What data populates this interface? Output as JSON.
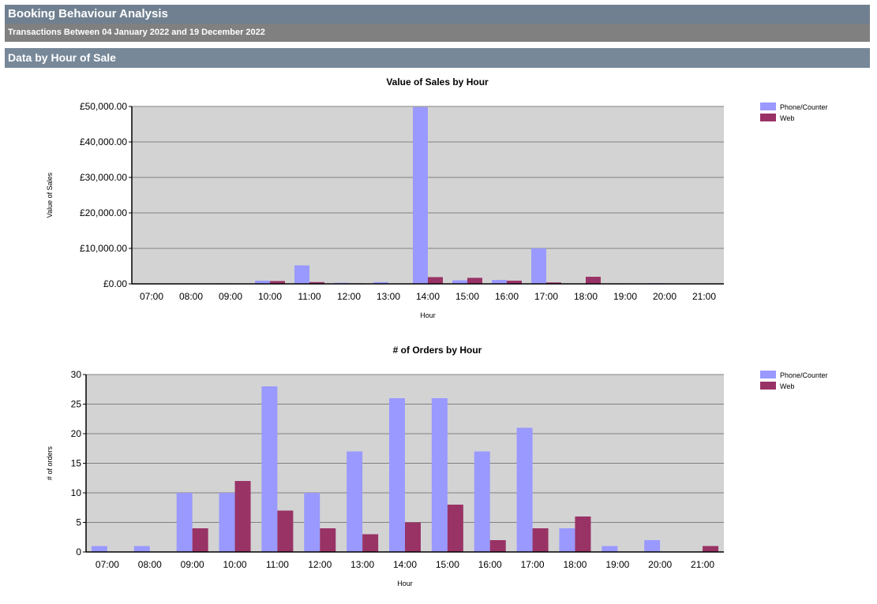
{
  "header": {
    "title": "Booking Behaviour Analysis",
    "subtitle": "Transactions Between 04 January 2022 and 19 December 2022",
    "section": "Data by Hour of Sale"
  },
  "colors": {
    "phone_counter": "#9999ff",
    "web": "#993366",
    "plot_background": "#d3d3d3",
    "header_title_bg": "#708090",
    "header_subtitle_bg": "#808080",
    "section_bg": "#778899"
  },
  "chart_data": [
    {
      "type": "bar",
      "title": "Value of Sales by Hour",
      "xlabel": "Hour",
      "ylabel": "Value of Sales",
      "categories": [
        "07:00",
        "08:00",
        "09:00",
        "10:00",
        "11:00",
        "12:00",
        "13:00",
        "14:00",
        "15:00",
        "16:00",
        "17:00",
        "18:00",
        "19:00",
        "20:00",
        "21:00"
      ],
      "ylim": [
        0,
        50000
      ],
      "yticks": [
        {
          "value": 0,
          "label": "£0.00"
        },
        {
          "value": 10000,
          "label": "£10,000.00"
        },
        {
          "value": 20000,
          "label": "£20,000.00"
        },
        {
          "value": 30000,
          "label": "£30,000.00"
        },
        {
          "value": 40000,
          "label": "£40,000.00"
        },
        {
          "value": 50000,
          "label": "£50,000.00"
        }
      ],
      "grid": true,
      "legend": "top-right",
      "series": [
        {
          "name": "Phone/Counter",
          "color": "#9999ff",
          "values": [
            30,
            40,
            150,
            900,
            5200,
            300,
            500,
            49800,
            1000,
            1100,
            10000,
            100,
            150,
            200,
            0
          ]
        },
        {
          "name": "Web",
          "color": "#993366",
          "values": [
            0,
            0,
            80,
            800,
            500,
            150,
            100,
            1900,
            1700,
            900,
            400,
            2000,
            50,
            30,
            120
          ]
        }
      ]
    },
    {
      "type": "bar",
      "title": "# of Orders by Hour",
      "xlabel": "Hour",
      "ylabel": "# of orders",
      "categories": [
        "07:00",
        "08:00",
        "09:00",
        "10:00",
        "11:00",
        "12:00",
        "13:00",
        "14:00",
        "15:00",
        "16:00",
        "17:00",
        "18:00",
        "19:00",
        "20:00",
        "21:00"
      ],
      "ylim": [
        0,
        30
      ],
      "yticks": [
        {
          "value": 0,
          "label": "0"
        },
        {
          "value": 5,
          "label": "5"
        },
        {
          "value": 10,
          "label": "10"
        },
        {
          "value": 15,
          "label": "15"
        },
        {
          "value": 20,
          "label": "20"
        },
        {
          "value": 25,
          "label": "25"
        },
        {
          "value": 30,
          "label": "30"
        }
      ],
      "grid": true,
      "legend": "top-right",
      "series": [
        {
          "name": "Phone/Counter",
          "color": "#9999ff",
          "values": [
            1,
            1,
            10,
            10,
            28,
            10,
            17,
            26,
            26,
            17,
            21,
            4,
            1,
            2,
            0
          ]
        },
        {
          "name": "Web",
          "color": "#993366",
          "values": [
            0,
            0,
            4,
            12,
            7,
            4,
            3,
            5,
            8,
            2,
            4,
            6,
            0,
            0,
            1
          ]
        }
      ]
    }
  ]
}
